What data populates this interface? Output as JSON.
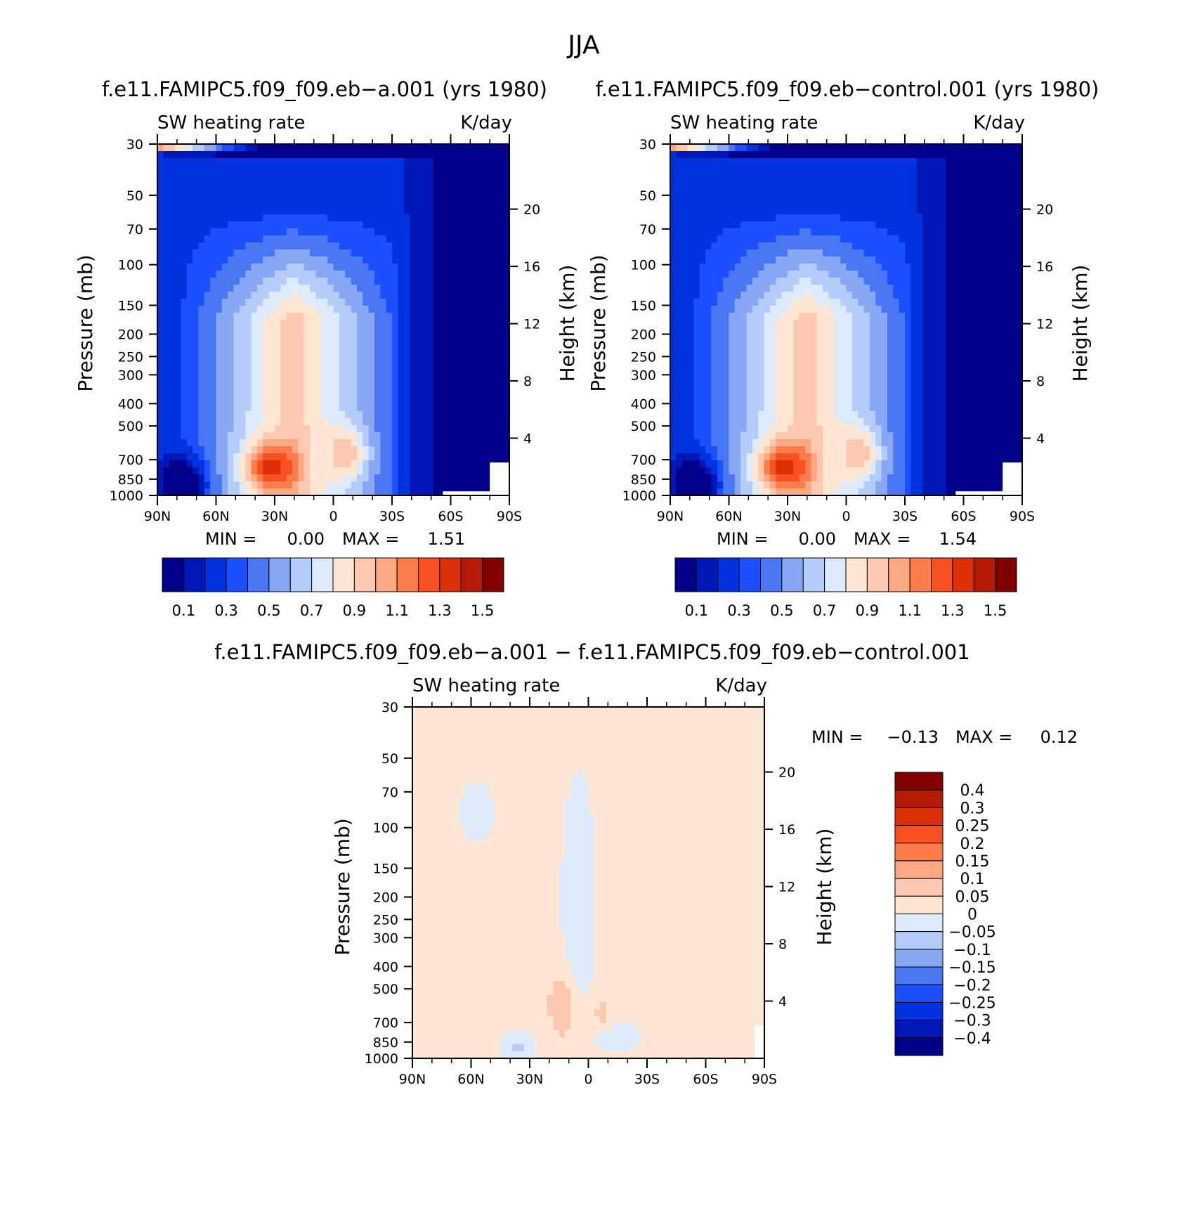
{
  "page_title": "JJA",
  "palette": {
    "abs": [
      "#00008b",
      "#0018b8",
      "#0033e0",
      "#1a50ff",
      "#4a78f5",
      "#88a8f5",
      "#b4ccfa",
      "#dceafc",
      "#fde6d2",
      "#fcc8b0",
      "#fca882",
      "#fc7c4c",
      "#f85020",
      "#de3008",
      "#b41a04",
      "#820000"
    ],
    "diff": [
      "#00008b",
      "#0018b8",
      "#0033e0",
      "#1a50ff",
      "#4a78f5",
      "#88a8f5",
      "#b4ccfa",
      "#dceafc",
      "#fde6d2",
      "#fcc8b0",
      "#fca882",
      "#fc7c4c",
      "#f85020",
      "#de3008",
      "#b41a04",
      "#820000"
    ]
  },
  "chart_data": [
    {
      "type": "heatmap",
      "title": "f.e11.FAMIPC5.f09_f09.eb−a.001 (yrs 1980)",
      "left_label": "SW heating rate",
      "right_label": "K/day",
      "ylabel": "Pressure (mb)",
      "ylabel2": "Height (km)",
      "x_ticks": [
        "90N",
        "60N",
        "30N",
        "0",
        "30S",
        "60S",
        "90S"
      ],
      "y_ticks": [
        "30",
        "50",
        "70",
        "100",
        "150",
        "200",
        "250",
        "300",
        "400",
        "500",
        "700",
        "850",
        "1000"
      ],
      "y2_ticks": [
        "20",
        "16",
        "12",
        "8",
        "4"
      ],
      "y2_values": [
        20,
        16,
        12,
        8,
        4
      ],
      "x_range": [
        90,
        -90
      ],
      "y_range": [
        1000,
        30
      ],
      "y_scale": "log",
      "min_label": "MIN =",
      "min_value": "0.00",
      "max_label": "MAX =",
      "max_value": "1.51",
      "colorbar_labels": [
        "0.1",
        "0.3",
        "0.5",
        "0.7",
        "0.9",
        "1.1",
        "1.3",
        "1.5"
      ],
      "levels": [
        0.1,
        0.2,
        0.3,
        0.4,
        0.5,
        0.6,
        0.7,
        0.8,
        0.9,
        1.0,
        1.1,
        1.2,
        1.3,
        1.4,
        1.5
      ]
    },
    {
      "type": "heatmap",
      "title": "f.e11.FAMIPC5.f09_f09.eb−control.001 (yrs 1980)",
      "left_label": "SW heating rate",
      "right_label": "K/day",
      "ylabel": "Pressure (mb)",
      "ylabel2": "Height (km)",
      "x_ticks": [
        "90N",
        "60N",
        "30N",
        "0",
        "30S",
        "60S",
        "90S"
      ],
      "y_ticks": [
        "30",
        "50",
        "70",
        "100",
        "150",
        "200",
        "250",
        "300",
        "400",
        "500",
        "700",
        "850",
        "1000"
      ],
      "y2_ticks": [
        "20",
        "16",
        "12",
        "8",
        "4"
      ],
      "y2_values": [
        20,
        16,
        12,
        8,
        4
      ],
      "x_range": [
        90,
        -90
      ],
      "y_range": [
        1000,
        30
      ],
      "y_scale": "log",
      "min_label": "MIN =",
      "min_value": "0.00",
      "max_label": "MAX =",
      "max_value": "1.54",
      "colorbar_labels": [
        "0.1",
        "0.3",
        "0.5",
        "0.7",
        "0.9",
        "1.1",
        "1.3",
        "1.5"
      ],
      "levels": [
        0.1,
        0.2,
        0.3,
        0.4,
        0.5,
        0.6,
        0.7,
        0.8,
        0.9,
        1.0,
        1.1,
        1.2,
        1.3,
        1.4,
        1.5
      ]
    },
    {
      "type": "heatmap",
      "title": "f.e11.FAMIPC5.f09_f09.eb−a.001 − f.e11.FAMIPC5.f09_f09.eb−control.001",
      "left_label": "SW heating rate",
      "right_label": "K/day",
      "ylabel": "Pressure (mb)",
      "ylabel2": "Height (km)",
      "x_ticks": [
        "90N",
        "60N",
        "30N",
        "0",
        "30S",
        "60S",
        "90S"
      ],
      "y_ticks": [
        "30",
        "50",
        "70",
        "100",
        "150",
        "200",
        "250",
        "300",
        "400",
        "500",
        "700",
        "850",
        "1000"
      ],
      "y2_ticks": [
        "20",
        "16",
        "12",
        "8",
        "4"
      ],
      "y2_values": [
        20,
        16,
        12,
        8,
        4
      ],
      "x_range": [
        90,
        -90
      ],
      "y_range": [
        1000,
        30
      ],
      "y_scale": "log",
      "min_label": "MIN =",
      "min_value": "−0.13",
      "max_label": "MAX =",
      "max_value": "0.12",
      "colorbar_labels": [
        "0.4",
        "0.3",
        "0.25",
        "0.2",
        "0.15",
        "0.1",
        "0.05",
        "0",
        "−0.05",
        "−0.1",
        "−0.15",
        "−0.2",
        "−0.25",
        "−0.3",
        "−0.4"
      ],
      "levels": [
        -0.4,
        -0.3,
        -0.25,
        -0.2,
        -0.15,
        -0.1,
        -0.05,
        0,
        0.05,
        0.1,
        0.15,
        0.2,
        0.25,
        0.3,
        0.4
      ]
    }
  ]
}
